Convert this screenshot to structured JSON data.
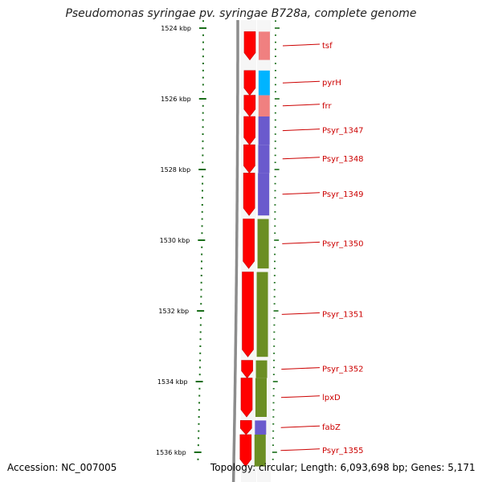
{
  "title": "Pseudomonas syringae pv. syringae B728a, complete genome",
  "footer": {
    "accession": "Accession: NC_007005",
    "topology": "Topology: circular; Length: 6,093,698 bp; Genes: 5,171"
  },
  "colors": {
    "cds_arrow": "#ff0000",
    "ruler_tick": "#1a6e1a",
    "backbone": "#8c8c8c",
    "label": "#cc0000",
    "cog_pink": "#f08080",
    "cog_cyan": "#00b4ff",
    "cog_purple": "#6a5acd",
    "cog_green": "#6b8e23"
  },
  "ruler": {
    "unit": "kbp",
    "labels": [
      "1524 kbp",
      "1526 kbp",
      "1528 kbp",
      "1530 kbp",
      "1532 kbp",
      "1534 kbp",
      "1536 kbp"
    ],
    "positions_kbp": [
      1524,
      1526,
      1528,
      1530,
      1532,
      1534,
      1536
    ]
  },
  "genes": [
    {
      "name": "tsf",
      "start_kbp": 1524.1,
      "end_kbp": 1524.9,
      "category": "cog_pink"
    },
    {
      "name": "pyrH",
      "start_kbp": 1525.2,
      "end_kbp": 1525.9,
      "category": "cog_cyan"
    },
    {
      "name": "frr",
      "start_kbp": 1525.9,
      "end_kbp": 1526.5,
      "category": "cog_pink"
    },
    {
      "name": "Psyr_1347",
      "start_kbp": 1526.5,
      "end_kbp": 1527.3,
      "category": "cog_purple"
    },
    {
      "name": "Psyr_1348",
      "start_kbp": 1527.3,
      "end_kbp": 1528.1,
      "category": "cog_purple"
    },
    {
      "name": "Psyr_1349",
      "start_kbp": 1528.1,
      "end_kbp": 1529.3,
      "category": "cog_purple"
    },
    {
      "name": "Psyr_1350",
      "start_kbp": 1529.4,
      "end_kbp": 1530.8,
      "category": "cog_green"
    },
    {
      "name": "Psyr_1351",
      "start_kbp": 1530.9,
      "end_kbp": 1533.3,
      "category": "cog_green"
    },
    {
      "name": "Psyr_1352",
      "start_kbp": 1533.4,
      "end_kbp": 1533.9,
      "category": "cog_green"
    },
    {
      "name": "lpxD",
      "start_kbp": 1533.9,
      "end_kbp": 1535.0,
      "category": "cog_green"
    },
    {
      "name": "fabZ",
      "start_kbp": 1535.1,
      "end_kbp": 1535.5,
      "category": "cog_purple"
    },
    {
      "name": "Psyr_1355",
      "start_kbp": 1535.5,
      "end_kbp": 1536.4,
      "category": "cog_green"
    }
  ]
}
